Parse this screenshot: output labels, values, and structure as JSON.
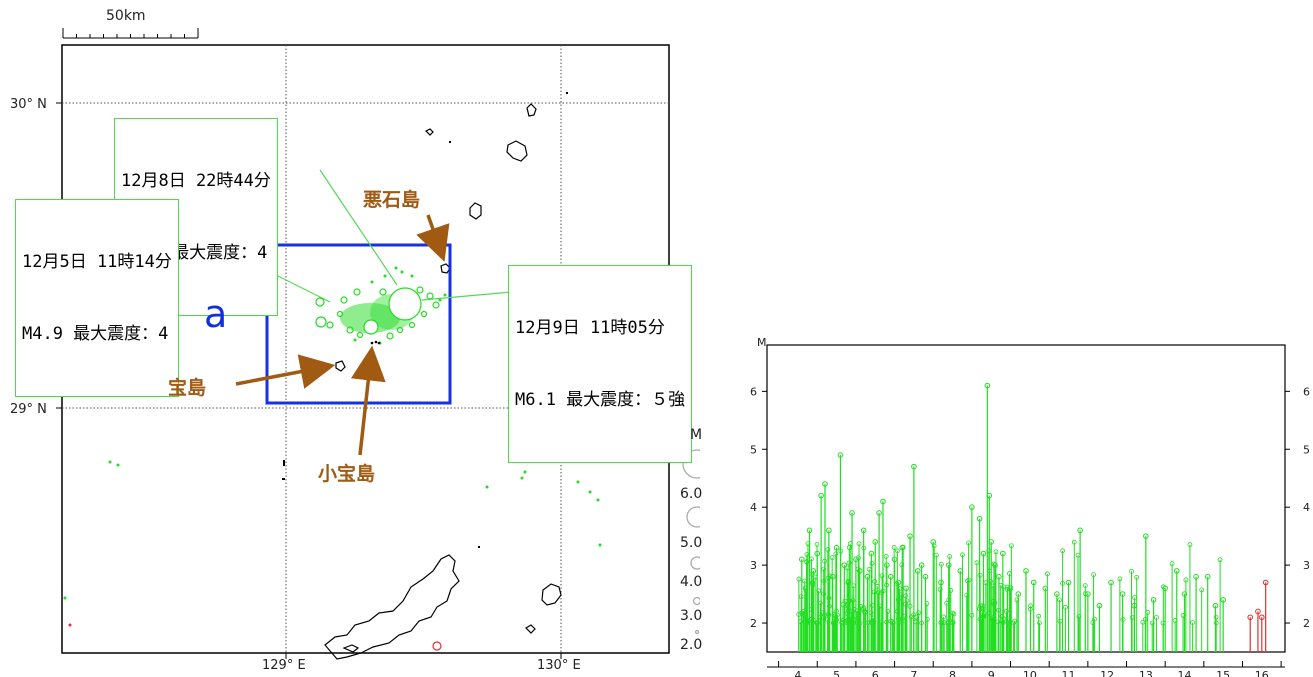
{
  "scalebar": {
    "label": "50km"
  },
  "map": {
    "lat_labels": [
      "30° N",
      "29° N"
    ],
    "lon_labels": [
      "129° E",
      "130° E"
    ],
    "region_label": "a",
    "callouts": [
      {
        "line1": "12月8日 22時44分",
        "line2": "M4.0 最大震度：4"
      },
      {
        "line1": "12月5日 11時14分",
        "line2": "M4.9 最大震度：4"
      },
      {
        "line1": "12月9日 11時05分",
        "line2": "M6.1 最大震度：５強"
      }
    ],
    "places": [
      "悪石島",
      "宝島",
      "小宝島"
    ],
    "colors": {
      "quake": "#22dd22",
      "recent": "#e03030",
      "box": "#1530e6",
      "arrow": "#a05a12"
    }
  },
  "legend": {
    "title": "M",
    "labels": [
      "6.0",
      "5.0",
      "4.0",
      "3.0",
      "2.0"
    ]
  },
  "mt_chart": {
    "y_title": "M",
    "y_ticks": [
      "6",
      "5",
      "4",
      "3",
      "2"
    ],
    "y_ticks_right": [
      "6",
      "5",
      "4",
      "3",
      "2"
    ],
    "x_ticks": [
      "4",
      "5",
      "6",
      "7",
      "8",
      "9",
      "10",
      "11",
      "12",
      "13",
      "14",
      "15",
      "16"
    ]
  },
  "chart_data": {
    "type": "scatter",
    "title": "",
    "xlabel": "",
    "ylabel": "M",
    "xlim": [
      3.2,
      16.6
    ],
    "ylim": [
      1.5,
      6.8
    ],
    "series": [
      {
        "values": [
          [
            4.1,
            3.1
          ],
          [
            4.2,
            2.6
          ],
          [
            4.3,
            3.6
          ],
          [
            4.4,
            2.9
          ],
          [
            4.5,
            3.2
          ],
          [
            4.6,
            4.2
          ],
          [
            4.7,
            4.4
          ],
          [
            4.8,
            3.6
          ],
          [
            4.9,
            2.8
          ],
          [
            5.0,
            3.3
          ],
          [
            5.1,
            4.9
          ],
          [
            5.2,
            3.0
          ],
          [
            5.3,
            2.7
          ],
          [
            5.4,
            3.9
          ],
          [
            5.5,
            3.1
          ],
          [
            5.6,
            2.9
          ],
          [
            5.7,
            3.6
          ],
          [
            5.8,
            2.8
          ],
          [
            5.9,
            3.2
          ],
          [
            6.0,
            3.4
          ],
          [
            6.1,
            3.9
          ],
          [
            6.2,
            4.1
          ],
          [
            6.3,
            3.0
          ],
          [
            6.4,
            2.8
          ],
          [
            6.5,
            3.1
          ],
          [
            6.6,
            2.7
          ],
          [
            6.7,
            3.3
          ],
          [
            6.8,
            2.6
          ],
          [
            6.9,
            3.5
          ],
          [
            7.0,
            4.7
          ],
          [
            7.1,
            2.9
          ],
          [
            7.2,
            3.0
          ],
          [
            7.3,
            2.8
          ],
          [
            7.5,
            3.4
          ],
          [
            7.7,
            2.7
          ],
          [
            7.9,
            3.0
          ],
          [
            8.2,
            2.9
          ],
          [
            8.5,
            4.0
          ],
          [
            8.7,
            3.8
          ],
          [
            8.8,
            3.2
          ],
          [
            8.9,
            6.1
          ],
          [
            8.95,
            4.2
          ],
          [
            9.0,
            3.4
          ],
          [
            9.1,
            3.0
          ],
          [
            9.2,
            2.8
          ],
          [
            9.3,
            3.2
          ],
          [
            9.5,
            2.6
          ],
          [
            9.7,
            2.5
          ],
          [
            9.9,
            2.9
          ],
          [
            10.1,
            2.7
          ],
          [
            10.4,
            2.6
          ],
          [
            10.7,
            2.5
          ],
          [
            11.0,
            2.7
          ],
          [
            11.3,
            3.6
          ],
          [
            11.5,
            2.5
          ],
          [
            11.8,
            2.3
          ],
          [
            12.1,
            2.7
          ],
          [
            12.4,
            2.5
          ],
          [
            12.7,
            2.3
          ],
          [
            13.0,
            3.5
          ],
          [
            13.2,
            2.4
          ],
          [
            13.5,
            2.6
          ],
          [
            13.8,
            2.9
          ],
          [
            14.0,
            2.5
          ],
          [
            14.3,
            2.8
          ],
          [
            14.6,
            2.8
          ],
          [
            14.8,
            2.3
          ],
          [
            15.0,
            2.4
          ]
        ]
      },
      {
        "values": [
          [
            15.7,
            2.1
          ],
          [
            15.9,
            2.2
          ],
          [
            16.0,
            2.1
          ],
          [
            16.1,
            2.7
          ]
        ]
      }
    ]
  }
}
